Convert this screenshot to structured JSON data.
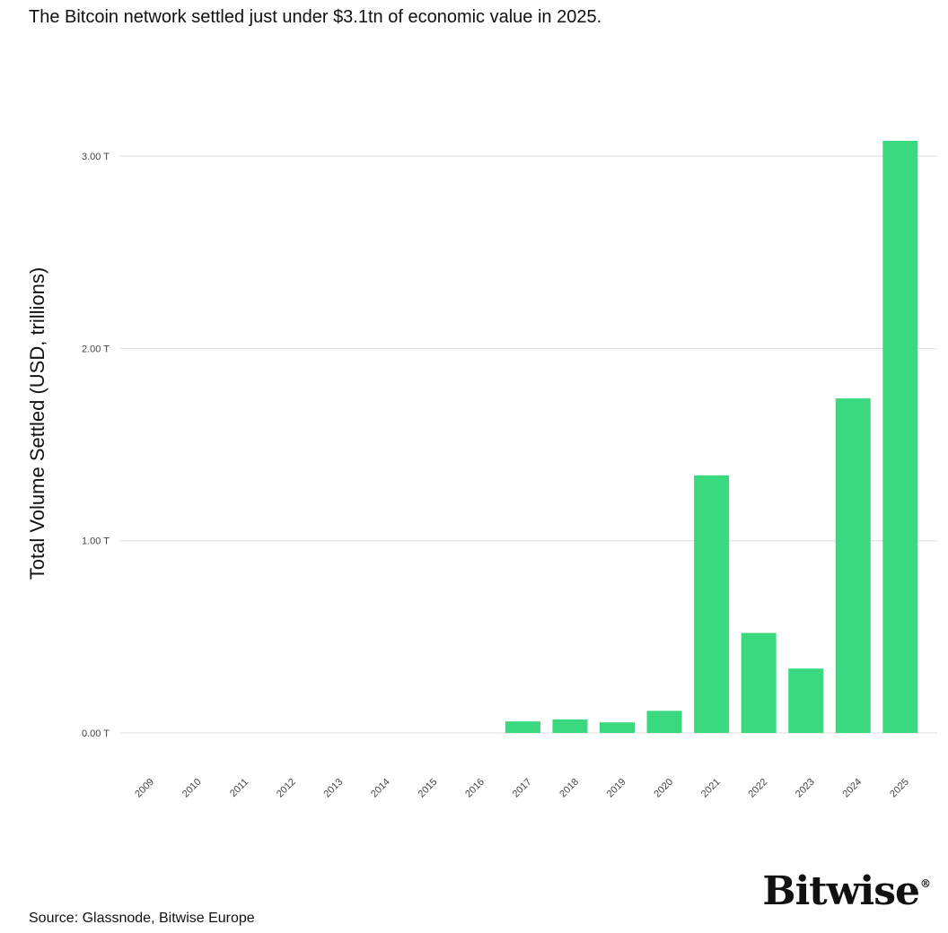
{
  "header": {
    "title": "The Bitcoin network settled just under $3.1tn of economic value in 2025."
  },
  "footer": {
    "source": "Source: Glassnode, Bitwise Europe"
  },
  "brand": {
    "logo_text": "Bitwise",
    "registered_mark": "®"
  },
  "colors": {
    "bar": "#3ad87f",
    "grid": "#dddddd",
    "text": "#111111",
    "tick": "#444444"
  },
  "chart_data": {
    "type": "bar",
    "title": "The Bitcoin network settled just under $3.1tn of economic value in 2025.",
    "xlabel": "",
    "ylabel": "Total Volume Settled (USD, trillions)",
    "categories": [
      "2009",
      "2010",
      "2011",
      "2012",
      "2013",
      "2014",
      "2015",
      "2016",
      "2017",
      "2018",
      "2019",
      "2020",
      "2021",
      "2022",
      "2023",
      "2024",
      "2025"
    ],
    "values": [
      0,
      0,
      0,
      0,
      0,
      0,
      0,
      0,
      0.06,
      0.07,
      0.055,
      0.115,
      1.34,
      0.52,
      0.335,
      1.74,
      3.08
    ],
    "yticks": [
      0,
      1,
      2,
      3
    ],
    "ytick_labels": [
      "0.00 T",
      "1.00 T",
      "2.00 T",
      "3.00 T"
    ],
    "ylim": [
      0,
      3.2
    ],
    "grid": "horizontal",
    "legend": "none"
  }
}
